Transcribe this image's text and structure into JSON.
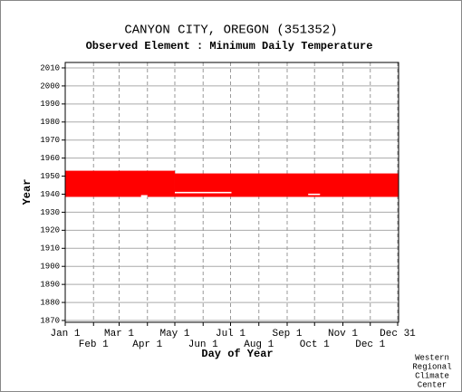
{
  "chart_data": {
    "type": "coverage",
    "title": "CANYON CITY, OREGON   (351352)",
    "subtitle": "Observed Element : Minimum Daily Temperature",
    "xlabel": "Day of Year",
    "ylabel": "Year",
    "credit": [
      "Western",
      "Regional",
      "Climate",
      "Center"
    ],
    "color": "#ff0000",
    "gap_color": "#ffffff",
    "xlim": [
      1,
      366
    ],
    "ylim": [
      1869,
      2013
    ],
    "xticks": [
      {
        "value": 1,
        "label": "Jan 1"
      },
      {
        "value": 32,
        "label": "Feb 1"
      },
      {
        "value": 60,
        "label": "Mar 1"
      },
      {
        "value": 91,
        "label": "Apr 1"
      },
      {
        "value": 121,
        "label": "May 1"
      },
      {
        "value": 152,
        "label": "Jun 1"
      },
      {
        "value": 182,
        "label": "Jul 1"
      },
      {
        "value": 213,
        "label": "Aug 1"
      },
      {
        "value": 244,
        "label": "Sep 1"
      },
      {
        "value": 274,
        "label": "Oct 1"
      },
      {
        "value": 305,
        "label": "Nov 1"
      },
      {
        "value": 335,
        "label": "Dec 1"
      },
      {
        "value": 365,
        "label": "Dec 31"
      }
    ],
    "yticks": [
      1870,
      1880,
      1890,
      1900,
      1910,
      1920,
      1930,
      1940,
      1950,
      1960,
      1970,
      1980,
      1990,
      2000,
      2010
    ],
    "bands": [
      {
        "x": [
          1,
          121
        ],
        "y": [
          1938.5,
          1953
        ]
      },
      {
        "x": [
          121,
          366
        ],
        "y": [
          1938.5,
          1951.5
        ]
      }
    ],
    "gaps": [
      {
        "x": [
          121,
          183
        ],
        "y": [
          1940.5,
          1941.3
        ]
      },
      {
        "x": [
          267,
          280
        ],
        "y": [
          1939.5,
          1940.3
        ]
      },
      {
        "x": [
          84,
          91
        ],
        "y": [
          1938.5,
          1939.5
        ]
      }
    ]
  }
}
